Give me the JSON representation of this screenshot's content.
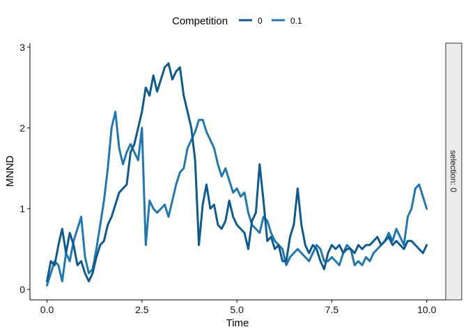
{
  "chart_data": {
    "type": "line",
    "xlabel": "Time",
    "ylabel": "MNND",
    "xlim": [
      -0.45,
      10.5
    ],
    "ylim": [
      -0.13,
      3.05
    ],
    "x_ticks": [
      "0.0",
      "2.5",
      "5.0",
      "7.5",
      "10.0"
    ],
    "x_tick_values": [
      0,
      2.5,
      5,
      7.5,
      10
    ],
    "y_ticks": [
      "0",
      "1",
      "2",
      "3"
    ],
    "y_tick_values": [
      0,
      1,
      2,
      3
    ],
    "legend": {
      "title": "Competition",
      "position": "top"
    },
    "facet_label": "selection: 0",
    "grid": false,
    "series": [
      {
        "name": "0",
        "color": "#0d5a91",
        "x": [
          0.0,
          0.1,
          0.2,
          0.3,
          0.4,
          0.5,
          0.6,
          0.7,
          0.8,
          0.9,
          1.0,
          1.1,
          1.2,
          1.3,
          1.4,
          1.5,
          1.6,
          1.7,
          1.8,
          1.9,
          2.0,
          2.1,
          2.2,
          2.3,
          2.4,
          2.5,
          2.6,
          2.7,
          2.8,
          2.9,
          3.0,
          3.1,
          3.2,
          3.3,
          3.4,
          3.5,
          3.6,
          3.7,
          3.8,
          3.9,
          4.0,
          4.1,
          4.2,
          4.3,
          4.4,
          4.5,
          4.6,
          4.7,
          4.8,
          4.9,
          5.0,
          5.1,
          5.2,
          5.3,
          5.4,
          5.5,
          5.6,
          5.7,
          5.8,
          5.9,
          6.0,
          6.1,
          6.2,
          6.3,
          6.4,
          6.5,
          6.6,
          6.7,
          6.8,
          6.9,
          7.0,
          7.1,
          7.2,
          7.3,
          7.4,
          7.5,
          7.6,
          7.7,
          7.8,
          7.9,
          8.0,
          8.1,
          8.2,
          8.3,
          8.4,
          8.5,
          8.6,
          8.7,
          8.8,
          8.9,
          9.0,
          9.1,
          9.2,
          9.3,
          9.4,
          9.5,
          9.6,
          9.7,
          9.8,
          9.9,
          10.0
        ],
        "y": [
          0.1,
          0.35,
          0.3,
          0.55,
          0.75,
          0.45,
          0.7,
          0.55,
          0.3,
          0.35,
          0.2,
          0.1,
          0.2,
          0.4,
          0.55,
          0.6,
          0.8,
          0.9,
          1.05,
          1.2,
          1.25,
          1.3,
          1.7,
          1.8,
          2.0,
          2.2,
          2.5,
          2.4,
          2.65,
          2.45,
          2.6,
          2.75,
          2.8,
          2.6,
          2.7,
          2.75,
          2.4,
          2.2,
          2.0,
          1.6,
          0.55,
          1.05,
          1.3,
          1.0,
          1.05,
          0.8,
          0.75,
          0.85,
          1.1,
          0.9,
          0.8,
          0.75,
          0.7,
          0.5,
          0.85,
          0.95,
          1.55,
          1.1,
          0.6,
          0.65,
          0.5,
          0.55,
          0.35,
          0.35,
          0.65,
          0.8,
          1.25,
          0.8,
          0.55,
          0.45,
          0.55,
          0.5,
          0.35,
          0.25,
          0.45,
          0.55,
          0.5,
          0.55,
          0.45,
          0.5,
          0.5,
          0.45,
          0.55,
          0.5,
          0.55,
          0.55,
          0.6,
          0.65,
          0.55,
          0.6,
          0.65,
          0.55,
          0.6,
          0.55,
          0.5,
          0.6,
          0.6,
          0.55,
          0.5,
          0.45,
          0.55
        ]
      },
      {
        "name": "0.1",
        "color": "#1f78b4",
        "x": [
          0.0,
          0.1,
          0.2,
          0.3,
          0.4,
          0.5,
          0.6,
          0.7,
          0.8,
          0.9,
          1.0,
          1.1,
          1.2,
          1.3,
          1.4,
          1.5,
          1.6,
          1.7,
          1.8,
          1.9,
          2.0,
          2.1,
          2.2,
          2.3,
          2.4,
          2.5,
          2.6,
          2.7,
          2.8,
          2.9,
          3.0,
          3.1,
          3.2,
          3.3,
          3.4,
          3.5,
          3.6,
          3.7,
          3.8,
          3.9,
          4.0,
          4.1,
          4.2,
          4.3,
          4.4,
          4.5,
          4.6,
          4.7,
          4.8,
          4.9,
          5.0,
          5.1,
          5.2,
          5.3,
          5.4,
          5.5,
          5.6,
          5.7,
          5.8,
          5.9,
          6.0,
          6.1,
          6.2,
          6.3,
          6.4,
          6.5,
          6.6,
          6.7,
          6.8,
          6.9,
          7.0,
          7.1,
          7.2,
          7.3,
          7.4,
          7.5,
          7.6,
          7.7,
          7.8,
          7.9,
          8.0,
          8.1,
          8.2,
          8.3,
          8.4,
          8.5,
          8.6,
          8.7,
          8.8,
          8.9,
          9.0,
          9.1,
          9.2,
          9.3,
          9.4,
          9.5,
          9.6,
          9.7,
          9.8,
          9.9,
          10.0
        ],
        "y": [
          0.05,
          0.2,
          0.35,
          0.3,
          0.1,
          0.45,
          0.35,
          0.6,
          0.75,
          0.9,
          0.4,
          0.2,
          0.25,
          0.5,
          0.8,
          1.1,
          1.5,
          2.0,
          2.2,
          1.75,
          1.55,
          1.7,
          1.8,
          1.7,
          1.6,
          2.0,
          0.55,
          1.1,
          1.0,
          0.95,
          1.0,
          1.05,
          0.9,
          1.1,
          1.3,
          1.45,
          1.5,
          1.75,
          1.85,
          1.95,
          2.1,
          2.1,
          1.95,
          1.85,
          1.75,
          1.55,
          1.4,
          1.5,
          1.35,
          1.2,
          1.25,
          1.15,
          1.2,
          0.95,
          0.8,
          0.75,
          0.7,
          0.9,
          0.85,
          0.7,
          0.6,
          0.55,
          0.5,
          0.3,
          0.4,
          0.45,
          0.5,
          0.45,
          0.4,
          0.35,
          0.45,
          0.55,
          0.5,
          0.35,
          0.35,
          0.4,
          0.35,
          0.3,
          0.45,
          0.55,
          0.5,
          0.3,
          0.35,
          0.3,
          0.4,
          0.35,
          0.45,
          0.5,
          0.55,
          0.6,
          0.7,
          0.6,
          0.75,
          0.65,
          0.55,
          0.9,
          1.0,
          1.25,
          1.3,
          1.15,
          1.0
        ]
      }
    ]
  }
}
